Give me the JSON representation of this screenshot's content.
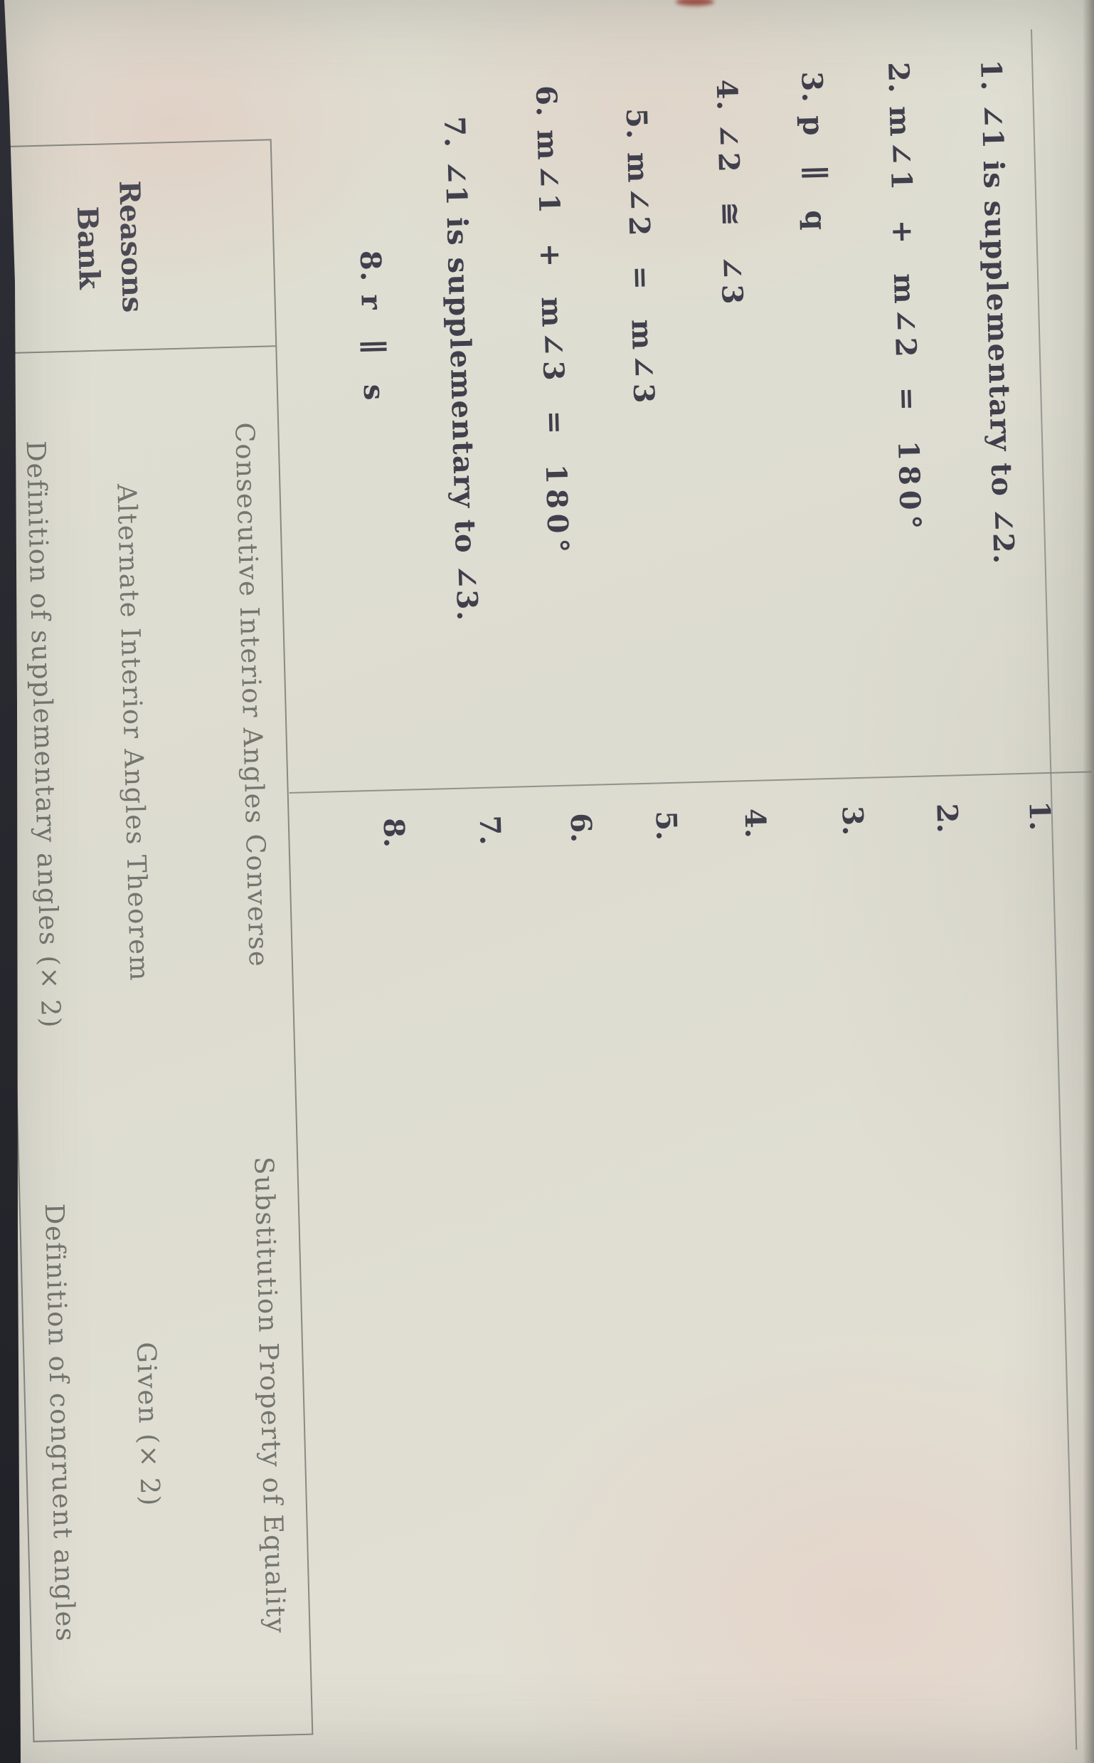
{
  "document_type": "geometry proof worksheet photo (rotated 90 degrees)",
  "colors": {
    "paper": "#dfded2",
    "ink": "#403f4c",
    "bank_item_ink": "#73756f",
    "rule_line": "#7d807b",
    "photo_edge": "#26272d",
    "red_mark": "#93453a"
  },
  "proof": {
    "rows": [
      {
        "num": "1.",
        "statement": "∠1 is supplementary to ∠2.",
        "reason_num": "1."
      },
      {
        "num": "2.",
        "statement": "m∠1 + m∠2 = 180°",
        "reason_num": "2."
      },
      {
        "num": "3.",
        "statement": "p ∥ q",
        "reason_num": "3."
      },
      {
        "num": "4.",
        "statement": "∠2 ≅ ∠3",
        "reason_num": "4."
      },
      {
        "num": "5.",
        "statement": "m∠2 = m∠3",
        "reason_num": "5."
      },
      {
        "num": "6.",
        "statement": "m∠1 + m∠3 = 180°",
        "reason_num": "6."
      },
      {
        "num": "7.",
        "statement": "∠1 is supplementary to ∠3.",
        "reason_num": "7."
      },
      {
        "num": "8.",
        "statement": "r ∥ s",
        "reason_num": "8."
      }
    ]
  },
  "bank": {
    "title_line1": "Reasons",
    "title_line2": "Bank",
    "items": [
      "Consecutive Interior Angles Converse",
      "Substitution Property of Equality",
      "Alternate Interior Angles Theorem",
      "Given (× 2)",
      "Definition of supplementary angles (× 2)",
      "Definition of congruent angles"
    ]
  }
}
